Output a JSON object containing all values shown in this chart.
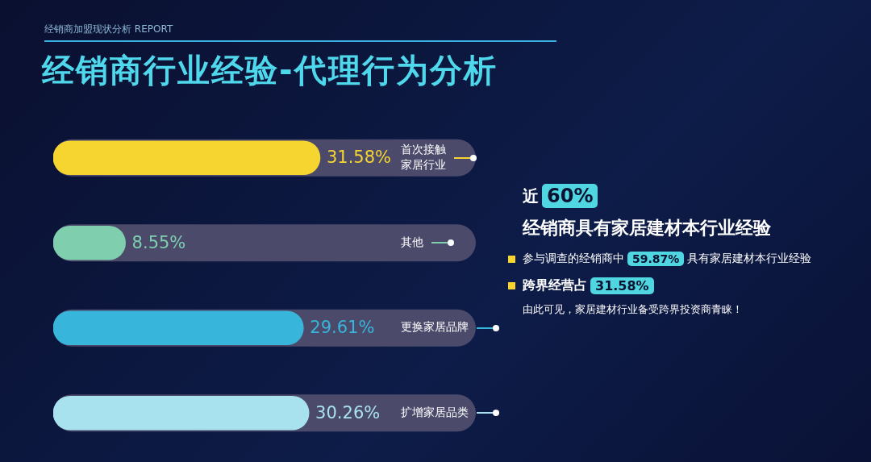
{
  "chart_data": {
    "type": "bar",
    "orientation": "horizontal",
    "title": "经销商行业经验-代理行为分析",
    "subtitle": "经销商加盟现状分析 REPORT",
    "categories": [
      "首次接触家居行业",
      "其他",
      "更换家居品牌",
      "扩增家居品类"
    ],
    "values": [
      31.58,
      8.55,
      29.61,
      30.26
    ],
    "colors": [
      "#f7d531",
      "#7fcfae",
      "#38b5da",
      "#a9e2ef"
    ],
    "value_labels": [
      "31.58%",
      "8.55%",
      "29.61%",
      "30.26%"
    ],
    "legend": false,
    "grid": false,
    "tick_labels": false,
    "annotations": [
      "近",
      "60%",
      "经销商具有家居建材本行业经验",
      "参与调查的经销商中",
      "59.87%",
      "具有家居建材本行业经验",
      "跨界经营占",
      "31.58%",
      "由此可见，家居建材行业备受跨界投资商青睐！"
    ]
  }
}
